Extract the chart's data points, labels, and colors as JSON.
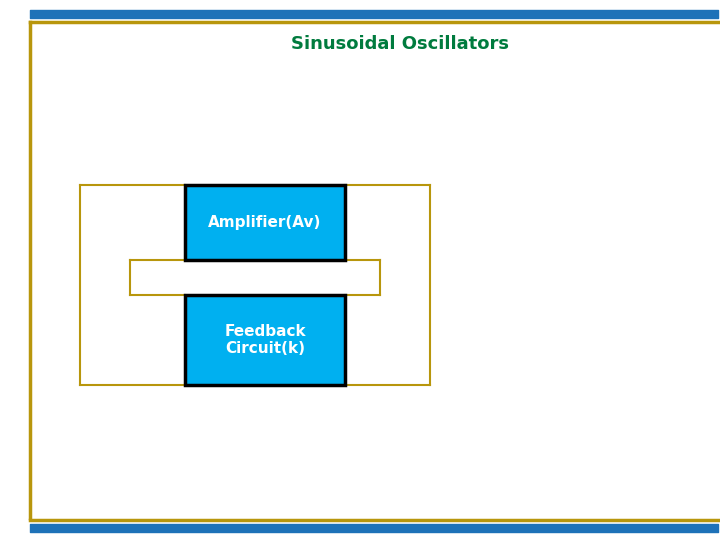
{
  "title": "Sinusoidal Oscillators",
  "title_color": "#007B3E",
  "title_fontsize": 13,
  "title_bold": true,
  "bg_color": "#ffffff",
  "border_blue_color": "#1E72B8",
  "border_gold_color": "#B8960C",
  "box1_label": "Amplifier(Av)",
  "box2_label": "Feedback\nCircuit(k)",
  "box_facecolor": "#00B0F0",
  "box_edgecolor": "#000000",
  "line_color": "#B8960C",
  "line_width": 1.5
}
